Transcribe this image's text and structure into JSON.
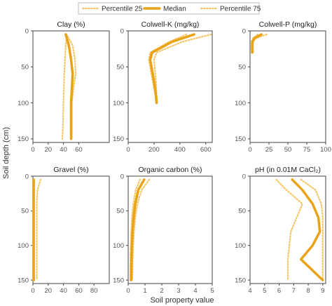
{
  "chart_data": {
    "type": "line",
    "colors": {
      "median": "#e8a317",
      "percentile": "#f5c76a",
      "frame": "#444444",
      "tick": "#555555"
    },
    "legend": {
      "position": "top",
      "entries": [
        {
          "key": "p25",
          "label": "Percentile 25",
          "style": "dotted"
        },
        {
          "key": "median",
          "label": "Median",
          "style": "solid"
        },
        {
          "key": "p75",
          "label": "Percentile 75",
          "style": "dotted"
        }
      ]
    },
    "ylabel": "Soil depth (cm)",
    "xlabel": "Soil property value",
    "ylim": [
      0,
      155
    ],
    "yticks": [
      0,
      50,
      100,
      150
    ],
    "panels": [
      {
        "title": "Clay (%)",
        "xlim": [
          0,
          100
        ],
        "xticks": [
          0,
          20,
          40,
          60
        ],
        "series": {
          "p25": {
            "x": [
              44,
              43,
              42,
              41,
              40.5,
              40,
              39.5,
              39,
              38.5
            ],
            "y": [
              5,
              20,
              40,
              60,
              80,
              100,
              120,
              140,
              150
            ]
          },
          "median": {
            "x": [
              43,
              47,
              50,
              52,
              51,
              50,
              50,
              50,
              50
            ],
            "y": [
              5,
              20,
              40,
              60,
              80,
              100,
              120,
              140,
              150
            ]
          },
          "p75": {
            "x": [
              44,
              52,
              55,
              56,
              53,
              51,
              51,
              51,
              51
            ],
            "y": [
              5,
              20,
              40,
              60,
              80,
              100,
              120,
              140,
              150
            ]
          }
        }
      },
      {
        "title": "Colwell-K (mg/kg)",
        "xlim": [
          0,
          650
        ],
        "xticks": [
          0,
          200,
          400,
          600
        ],
        "series": {
          "p25": {
            "x": [
              450,
              320,
              170,
              160,
              170,
              190,
              210,
              215
            ],
            "y": [
              5,
              15,
              30,
              40,
              50,
              70,
              90,
              100
            ]
          },
          "median": {
            "x": [
              510,
              340,
              185,
              170,
              180,
              200,
              215,
              220
            ],
            "y": [
              5,
              15,
              30,
              40,
              50,
              70,
              90,
              100
            ]
          },
          "p75": {
            "x": [
              640,
              420,
              220,
              200,
              205,
              215,
              220,
              225
            ],
            "y": [
              5,
              15,
              30,
              40,
              50,
              70,
              90,
              100
            ]
          }
        }
      },
      {
        "title": "Colwell-P (mg/kg)",
        "xlim": [
          0,
          100
        ],
        "xticks": [
          0,
          25,
          50,
          75,
          100
        ],
        "series": {
          "p25": {
            "x": [
              10,
              4,
              2,
              2,
              2,
              2
            ],
            "y": [
              5,
              10,
              15,
              20,
              25,
              30
            ]
          },
          "median": {
            "x": [
              15,
              6,
              3,
              3,
              3,
              3
            ],
            "y": [
              5,
              10,
              15,
              20,
              25,
              30
            ]
          },
          "p75": {
            "x": [
              22,
              8,
              4,
              4,
              4,
              4
            ],
            "y": [
              5,
              10,
              15,
              20,
              25,
              30
            ]
          }
        }
      },
      {
        "title": "Gravel (%)",
        "xlim": [
          0,
          100
        ],
        "xticks": [
          0,
          20,
          40,
          60,
          80
        ],
        "series": {
          "p25": {
            "x": [
              0,
              0,
              0,
              0,
              0,
              0,
              0,
              0
            ],
            "y": [
              5,
              20,
              40,
              60,
              80,
              100,
              120,
              150
            ]
          },
          "median": {
            "x": [
              1,
              1,
              1,
              1,
              1,
              1,
              1,
              1
            ],
            "y": [
              5,
              20,
              40,
              60,
              80,
              100,
              120,
              150
            ]
          },
          "p75": {
            "x": [
              10,
              6,
              5,
              5,
              5,
              5,
              5,
              5
            ],
            "y": [
              5,
              20,
              40,
              60,
              80,
              100,
              120,
              150
            ]
          }
        }
      },
      {
        "title": "Organic carbon (%)",
        "xlim": [
          0,
          5
        ],
        "xticks": [
          0,
          1,
          2,
          3,
          4,
          5
        ],
        "series": {
          "p25": {
            "x": [
              0.7,
              0.45,
              0.3,
              0.22,
              0.18,
              0.15,
              0.13,
              0.12
            ],
            "y": [
              5,
              20,
              40,
              60,
              80,
              100,
              120,
              150
            ]
          },
          "median": {
            "x": [
              0.95,
              0.6,
              0.42,
              0.32,
              0.26,
              0.22,
              0.2,
              0.18
            ],
            "y": [
              5,
              20,
              40,
              60,
              80,
              100,
              120,
              150
            ]
          },
          "p75": {
            "x": [
              1.25,
              0.8,
              0.55,
              0.42,
              0.35,
              0.3,
              0.27,
              0.25
            ],
            "y": [
              5,
              20,
              40,
              60,
              80,
              100,
              120,
              150
            ]
          }
        }
      },
      {
        "title": "pH (in 0.01M CaCl₂)",
        "xlim": [
          4,
          9.2
        ],
        "xticks": [
          4,
          5,
          6,
          7,
          8,
          9
        ],
        "series": {
          "p25": {
            "x": [
              5.8,
              6.5,
              7.6,
              7.2,
              6.8,
              6.7,
              6.6,
              6.6
            ],
            "y": [
              5,
              20,
              40,
              60,
              80,
              100,
              120,
              150
            ]
          },
          "median": {
            "x": [
              6.9,
              7.6,
              8.3,
              8.7,
              8.8,
              8.3,
              7.5,
              9.0
            ],
            "y": [
              5,
              20,
              40,
              60,
              80,
              100,
              120,
              150
            ]
          },
          "p75": {
            "x": [
              7.5,
              8.5,
              8.9,
              9.0,
              9.0,
              9.0,
              9.0,
              9.0
            ],
            "y": [
              5,
              20,
              40,
              60,
              80,
              100,
              120,
              150
            ]
          }
        }
      }
    ]
  }
}
